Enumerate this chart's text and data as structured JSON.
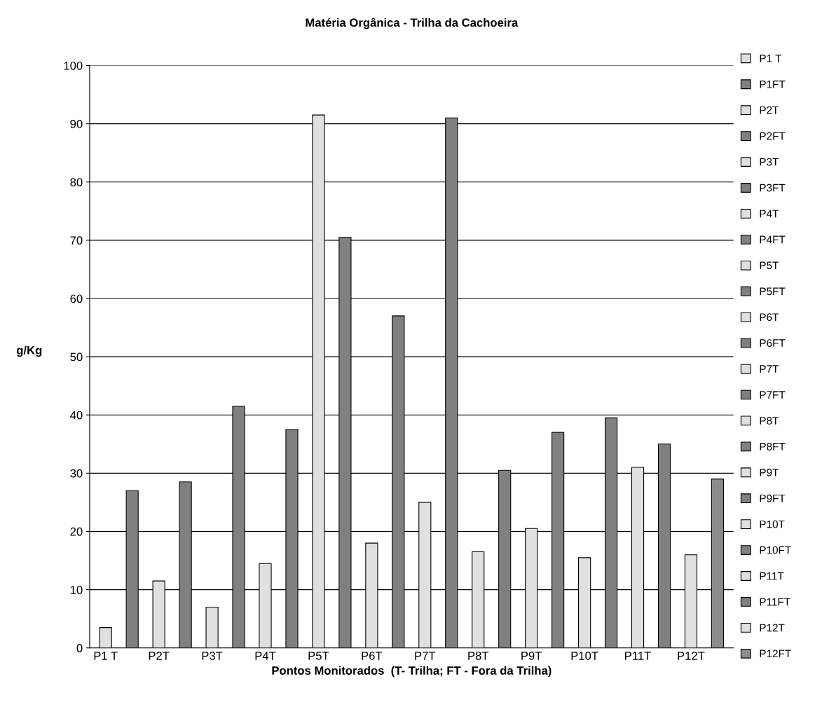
{
  "chart_data": {
    "type": "bar",
    "title": "Matéria Orgânica - Trilha da Cachoeira",
    "xlabel": "Pontos Monitorados  (T- Trilha; FT - Fora da Trilha)",
    "ylabel": "g/Kg",
    "categories": [
      "P1 T",
      null,
      "P2T",
      null,
      "P3T",
      null,
      "P4T",
      null,
      "P5T",
      null,
      "P6T",
      null,
      "P7T",
      null,
      "P8T",
      null,
      "P9T",
      null,
      "P10T",
      null,
      "P11T",
      null,
      "P12T",
      null
    ],
    "series": [
      {
        "name": "P1 T",
        "color": "#e0e0e0",
        "values": [
          3.5,
          null,
          null,
          null,
          null,
          null,
          null,
          null,
          null,
          null,
          null,
          null,
          null,
          null,
          null,
          null,
          null,
          null,
          null,
          null,
          null,
          null,
          null,
          null
        ]
      },
      {
        "name": "P1FT",
        "color": "#808080",
        "values": [
          null,
          27,
          null,
          null,
          null,
          null,
          null,
          null,
          null,
          null,
          null,
          null,
          null,
          null,
          null,
          null,
          null,
          null,
          null,
          null,
          null,
          null,
          null,
          null
        ]
      },
      {
        "name": "P2T",
        "color": "#e0e0e0",
        "values": [
          null,
          null,
          11.5,
          null,
          null,
          null,
          null,
          null,
          null,
          null,
          null,
          null,
          null,
          null,
          null,
          null,
          null,
          null,
          null,
          null,
          null,
          null,
          null,
          null
        ]
      },
      {
        "name": "P2FT",
        "color": "#808080",
        "values": [
          null,
          null,
          null,
          28.5,
          null,
          null,
          null,
          null,
          null,
          null,
          null,
          null,
          null,
          null,
          null,
          null,
          null,
          null,
          null,
          null,
          null,
          null,
          null,
          null
        ]
      },
      {
        "name": "P3T",
        "color": "#e0e0e0",
        "values": [
          null,
          null,
          null,
          null,
          7,
          null,
          null,
          null,
          null,
          null,
          null,
          null,
          null,
          null,
          null,
          null,
          null,
          null,
          null,
          null,
          null,
          null,
          null,
          null
        ]
      },
      {
        "name": "P3FT",
        "color": "#808080",
        "values": [
          null,
          null,
          null,
          null,
          null,
          41.5,
          null,
          null,
          null,
          null,
          null,
          null,
          null,
          null,
          null,
          null,
          null,
          null,
          null,
          null,
          null,
          null,
          null,
          null
        ]
      },
      {
        "name": "P4T",
        "color": "#e0e0e0",
        "values": [
          null,
          null,
          null,
          null,
          null,
          null,
          14.5,
          null,
          null,
          null,
          null,
          null,
          null,
          null,
          null,
          null,
          null,
          null,
          null,
          null,
          null,
          null,
          null,
          null
        ]
      },
      {
        "name": "P4FT",
        "color": "#808080",
        "values": [
          null,
          null,
          null,
          null,
          null,
          null,
          null,
          37.5,
          null,
          null,
          null,
          null,
          null,
          null,
          null,
          null,
          null,
          null,
          null,
          null,
          null,
          null,
          null,
          null
        ]
      },
      {
        "name": "P5T",
        "color": "#e0e0e0",
        "values": [
          null,
          null,
          null,
          null,
          null,
          null,
          null,
          null,
          91.5,
          null,
          null,
          null,
          null,
          null,
          null,
          null,
          null,
          null,
          null,
          null,
          null,
          null,
          null,
          null
        ]
      },
      {
        "name": "P5FT",
        "color": "#808080",
        "values": [
          null,
          null,
          null,
          null,
          null,
          null,
          null,
          null,
          null,
          70.5,
          null,
          null,
          null,
          null,
          null,
          null,
          null,
          null,
          null,
          null,
          null,
          null,
          null,
          null
        ]
      },
      {
        "name": "P6T",
        "color": "#e0e0e0",
        "values": [
          null,
          null,
          null,
          null,
          null,
          null,
          null,
          null,
          null,
          null,
          18,
          null,
          null,
          null,
          null,
          null,
          null,
          null,
          null,
          null,
          null,
          null,
          null,
          null
        ]
      },
      {
        "name": "P6FT",
        "color": "#808080",
        "values": [
          null,
          null,
          null,
          null,
          null,
          null,
          null,
          null,
          null,
          null,
          null,
          57,
          null,
          null,
          null,
          null,
          null,
          null,
          null,
          null,
          null,
          null,
          null,
          null
        ]
      },
      {
        "name": "P7T",
        "color": "#e0e0e0",
        "values": [
          null,
          null,
          null,
          null,
          null,
          null,
          null,
          null,
          null,
          null,
          null,
          null,
          25,
          null,
          null,
          null,
          null,
          null,
          null,
          null,
          null,
          null,
          null,
          null
        ]
      },
      {
        "name": "P7FT",
        "color": "#808080",
        "values": [
          null,
          null,
          null,
          null,
          null,
          null,
          null,
          null,
          null,
          null,
          null,
          null,
          null,
          91,
          null,
          null,
          null,
          null,
          null,
          null,
          null,
          null,
          null,
          null
        ]
      },
      {
        "name": "P8T",
        "color": "#e0e0e0",
        "values": [
          null,
          null,
          null,
          null,
          null,
          null,
          null,
          null,
          null,
          null,
          null,
          null,
          null,
          null,
          16.5,
          null,
          null,
          null,
          null,
          null,
          null,
          null,
          null,
          null
        ]
      },
      {
        "name": "P8FT",
        "color": "#808080",
        "values": [
          null,
          null,
          null,
          null,
          null,
          null,
          null,
          null,
          null,
          null,
          null,
          null,
          null,
          null,
          null,
          30.5,
          null,
          null,
          null,
          null,
          null,
          null,
          null,
          null
        ]
      },
      {
        "name": "P9T",
        "color": "#e0e0e0",
        "values": [
          null,
          null,
          null,
          null,
          null,
          null,
          null,
          null,
          null,
          null,
          null,
          null,
          null,
          null,
          null,
          null,
          20.5,
          null,
          null,
          null,
          null,
          null,
          null,
          null
        ]
      },
      {
        "name": "P9FT",
        "color": "#808080",
        "values": [
          null,
          null,
          null,
          null,
          null,
          null,
          null,
          null,
          null,
          null,
          null,
          null,
          null,
          null,
          null,
          null,
          null,
          37,
          null,
          null,
          null,
          null,
          null,
          null
        ]
      },
      {
        "name": "P10T",
        "color": "#e0e0e0",
        "values": [
          null,
          null,
          null,
          null,
          null,
          null,
          null,
          null,
          null,
          null,
          null,
          null,
          null,
          null,
          null,
          null,
          null,
          null,
          15.5,
          null,
          null,
          null,
          null,
          null
        ]
      },
      {
        "name": "P10FT",
        "color": "#808080",
        "values": [
          null,
          null,
          null,
          null,
          null,
          null,
          null,
          null,
          null,
          null,
          null,
          null,
          null,
          null,
          null,
          null,
          null,
          null,
          null,
          39.5,
          null,
          null,
          null,
          null
        ]
      },
      {
        "name": "P11T",
        "color": "#e0e0e0",
        "values": [
          null,
          null,
          null,
          null,
          null,
          null,
          null,
          null,
          null,
          null,
          null,
          null,
          null,
          null,
          null,
          null,
          null,
          null,
          null,
          null,
          31,
          null,
          null,
          null
        ]
      },
      {
        "name": "P11FT",
        "color": "#808080",
        "values": [
          null,
          null,
          null,
          null,
          null,
          null,
          null,
          null,
          null,
          null,
          null,
          null,
          null,
          null,
          null,
          null,
          null,
          null,
          null,
          null,
          null,
          35,
          null,
          null
        ]
      },
      {
        "name": "P12T",
        "color": "#e0e0e0",
        "values": [
          null,
          null,
          null,
          null,
          null,
          null,
          null,
          null,
          null,
          null,
          null,
          null,
          null,
          null,
          null,
          null,
          null,
          null,
          null,
          null,
          null,
          null,
          16,
          null
        ]
      },
      {
        "name": "P12FT",
        "color": "#8c8c8c",
        "values": [
          null,
          null,
          null,
          null,
          null,
          null,
          null,
          null,
          null,
          null,
          null,
          null,
          null,
          null,
          null,
          null,
          null,
          null,
          null,
          null,
          null,
          null,
          null,
          29
        ]
      }
    ],
    "ylim": [
      0,
      100
    ],
    "yticks": [
      0,
      10,
      20,
      30,
      40,
      50,
      60,
      70,
      80,
      90,
      100
    ],
    "grid": "y",
    "legend": "right"
  }
}
